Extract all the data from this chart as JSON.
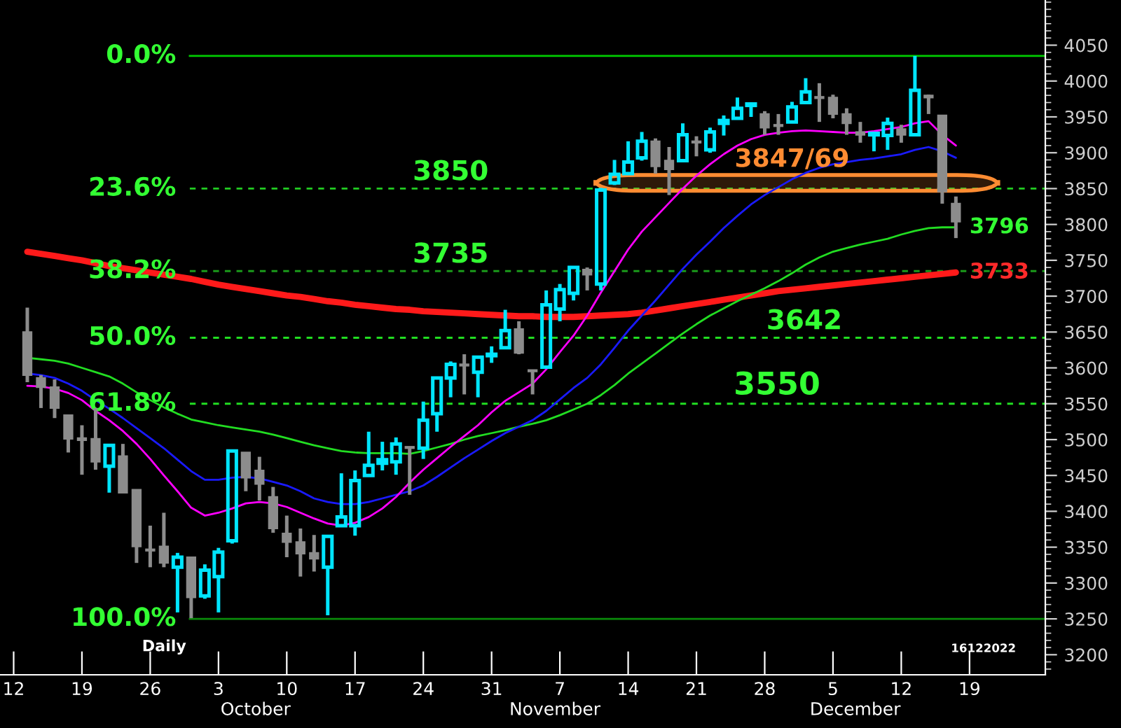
{
  "chart_data": {
    "type": "candlestick",
    "categories": [
      "12",
      null,
      null,
      null,
      null,
      "19",
      null,
      null,
      null,
      null,
      "26",
      null,
      null,
      null,
      null,
      "3",
      null,
      null,
      null,
      null,
      "10",
      null,
      null,
      null,
      null,
      "17",
      null,
      null,
      null,
      null,
      "24",
      null,
      null,
      null,
      null,
      "31",
      null,
      null,
      null,
      null,
      "7",
      null,
      null,
      null,
      null,
      "14",
      null,
      null,
      null,
      null,
      "21",
      null,
      null,
      null,
      null,
      "28",
      null,
      null,
      null,
      null,
      "5",
      null,
      null,
      null,
      null,
      "12",
      null,
      null,
      null,
      null,
      "19",
      null,
      null,
      null,
      null
    ],
    "ohlc": [
      null,
      [
        3650,
        3684,
        3580,
        3590
      ],
      [
        3586,
        3590,
        3544,
        3573
      ],
      [
        3573,
        3584,
        3530,
        3544
      ],
      [
        3534,
        3535,
        3482,
        3501
      ],
      [
        3502,
        3520,
        3451,
        3499
      ],
      [
        3501,
        3544,
        3458,
        3469
      ],
      [
        3463,
        3492,
        3426,
        3492
      ],
      [
        3477,
        3494,
        3426,
        3426
      ],
      [
        3430,
        3430,
        3328,
        3351
      ],
      [
        3347,
        3380,
        3322,
        3345
      ],
      [
        3351,
        3398,
        3322,
        3328
      ],
      [
        3322,
        3342,
        3259,
        3336
      ],
      [
        3336,
        3336,
        3251,
        3280
      ],
      [
        3282,
        3326,
        3278,
        3318
      ],
      [
        3309,
        3349,
        3259,
        3343
      ],
      [
        3359,
        3484,
        3355,
        3484
      ],
      [
        3482,
        3482,
        3428,
        3447
      ],
      [
        3457,
        3476,
        3415,
        3438
      ],
      [
        3420,
        3434,
        3370,
        3376
      ],
      [
        3369,
        3394,
        3336,
        3357
      ],
      [
        3357,
        3376,
        3309,
        3341
      ],
      [
        3342,
        3367,
        3316,
        3334
      ],
      [
        3322,
        3365,
        3255,
        3365
      ],
      [
        3380,
        3453,
        3378,
        3392
      ],
      [
        3380,
        3457,
        3366,
        3443
      ],
      [
        3450,
        3511,
        3450,
        3464
      ],
      [
        3467,
        3497,
        3457,
        3472
      ],
      [
        3469,
        3503,
        3451,
        3494
      ],
      [
        3490,
        3490,
        3423,
        3488
      ],
      [
        3488,
        3553,
        3473,
        3527
      ],
      [
        3536,
        3586,
        3511,
        3586
      ],
      [
        3586,
        3609,
        3559,
        3605
      ],
      [
        3605,
        3619,
        3563,
        3603
      ],
      [
        3594,
        3615,
        3559,
        3615
      ],
      [
        3617,
        3630,
        3607,
        3619
      ],
      [
        3628,
        3681,
        3628,
        3652
      ],
      [
        3654,
        3665,
        3619,
        3621
      ],
      [
        3597,
        3597,
        3563,
        3595
      ],
      [
        3601,
        3708,
        3601,
        3688
      ],
      [
        3682,
        3717,
        3665,
        3709
      ],
      [
        3704,
        3742,
        3694,
        3740
      ],
      [
        3737,
        3740,
        3708,
        3730
      ],
      [
        3717,
        3851,
        3708,
        3848
      ],
      [
        3858,
        3890,
        3855,
        3870
      ],
      [
        3871,
        3916,
        3871,
        3887
      ],
      [
        3893,
        3929,
        3889,
        3916
      ],
      [
        3916,
        3920,
        3871,
        3881
      ],
      [
        3889,
        3908,
        3841,
        3877
      ],
      [
        3889,
        3941,
        3889,
        3925
      ],
      [
        3916,
        3923,
        3895,
        3914
      ],
      [
        3904,
        3935,
        3900,
        3929
      ],
      [
        3941,
        3952,
        3924,
        3945
      ],
      [
        3948,
        3977,
        3948,
        3962
      ],
      [
        3966,
        3970,
        3950,
        3968
      ],
      [
        3954,
        3958,
        3925,
        3935
      ],
      [
        3939,
        3954,
        3925,
        3937
      ],
      [
        3943,
        3971,
        3943,
        3964
      ],
      [
        3970,
        4004,
        3970,
        3985
      ],
      [
        3978,
        3997,
        3943,
        3976
      ],
      [
        3977,
        3981,
        3948,
        3954
      ],
      [
        3954,
        3962,
        3925,
        3941
      ],
      [
        3929,
        3943,
        3914,
        3925
      ],
      [
        3925,
        3929,
        3902,
        3927
      ],
      [
        3924,
        3949,
        3904,
        3941
      ],
      [
        3933,
        3939,
        3914,
        3925
      ],
      [
        3925,
        4035,
        3923,
        3987
      ],
      [
        3980,
        3981,
        3954,
        3977
      ],
      [
        3952,
        3952,
        3829,
        3846
      ],
      [
        3829,
        3839,
        3781,
        3804
      ],
      null,
      null,
      null,
      null,
      null
    ],
    "colors": [
      null,
      "#8c8c8c",
      "#8c8c8c",
      "#8c8c8c",
      "#8c8c8c",
      "#8c8c8c",
      "#8c8c8c",
      "#00e5ff",
      "#8c8c8c",
      "#8c8c8c",
      "#8c8c8c",
      "#8c8c8c",
      "#00e5ff",
      "#8c8c8c",
      "#00e5ff",
      "#00e5ff",
      "#00e5ff",
      "#8c8c8c",
      "#8c8c8c",
      "#8c8c8c",
      "#8c8c8c",
      "#8c8c8c",
      "#8c8c8c",
      "#00e5ff",
      "#00e5ff",
      "#00e5ff",
      "#00e5ff",
      "#00e5ff",
      "#00e5ff",
      "#8c8c8c",
      "#00e5ff",
      "#00e5ff",
      "#00e5ff",
      "#8c8c8c",
      "#00e5ff",
      "#00e5ff",
      "#00e5ff",
      "#8c8c8c",
      "#8c8c8c",
      "#00e5ff",
      "#00e5ff",
      "#00e5ff",
      "#8c8c8c",
      "#00e5ff",
      "#00e5ff",
      "#00e5ff",
      "#00e5ff",
      "#8c8c8c",
      "#8c8c8c",
      "#00e5ff",
      "#8c8c8c",
      "#00e5ff",
      "#00e5ff",
      "#00e5ff",
      "#00e5ff",
      "#8c8c8c",
      "#8c8c8c",
      "#00e5ff",
      "#00e5ff",
      "#8c8c8c",
      "#8c8c8c",
      "#8c8c8c",
      "#8c8c8c",
      "#00e5ff",
      "#00e5ff",
      "#8c8c8c",
      "#00e5ff",
      "#8c8c8c",
      "#8c8c8c",
      "#8c8c8c",
      null,
      null,
      null,
      null,
      null
    ],
    "series": [
      {
        "type": "line",
        "color": "#ff1a1a",
        "values": [
          null,
          3762,
          3759,
          3756,
          3753,
          3750,
          3746,
          3742,
          3739,
          3736,
          3733,
          3730,
          3727,
          3724,
          3720,
          3716,
          3713,
          3710,
          3707,
          3704,
          3701,
          3699,
          3696,
          3693,
          3691,
          3688,
          3686,
          3684,
          3682,
          3681,
          3679,
          3678,
          3677,
          3676,
          3675,
          3674,
          3673,
          3672,
          3672,
          3671,
          3671,
          3671,
          3672,
          3673,
          3674,
          3675,
          3677,
          3680,
          3683,
          3686,
          3689,
          3692,
          3695,
          3698,
          3701,
          3704,
          3707,
          3709,
          3711,
          3713,
          3715,
          3717,
          3719,
          3721,
          3723,
          3725,
          3727,
          3729,
          3731,
          3733,
          null,
          null,
          null,
          null,
          null
        ]
      },
      {
        "type": "line",
        "color": "#22dd22",
        "values": [
          null,
          3614,
          3612,
          3610,
          3606,
          3600,
          3594,
          3588,
          3578,
          3566,
          3555,
          3545,
          3536,
          3528,
          3524,
          3520,
          3517,
          3514,
          3511,
          3507,
          3502,
          3497,
          3492,
          3488,
          3484,
          3482,
          3481,
          3481,
          3481,
          3480,
          3484,
          3489,
          3494,
          3500,
          3505,
          3509,
          3513,
          3518,
          3522,
          3527,
          3534,
          3542,
          3550,
          3562,
          3576,
          3592,
          3606,
          3620,
          3634,
          3648,
          3661,
          3673,
          3683,
          3693,
          3702,
          3711,
          3721,
          3732,
          3744,
          3754,
          3762,
          3767,
          3772,
          3776,
          3780,
          3786,
          3791,
          3795,
          3796,
          3796,
          null,
          null,
          null,
          null,
          null
        ]
      },
      {
        "type": "line",
        "color": "#1a1aff",
        "values": [
          null,
          3592,
          3590,
          3586,
          3578,
          3568,
          3555,
          3543,
          3530,
          3516,
          3502,
          3488,
          3472,
          3456,
          3444,
          3444,
          3447,
          3448,
          3446,
          3441,
          3436,
          3428,
          3418,
          3413,
          3410,
          3410,
          3413,
          3418,
          3423,
          3428,
          3436,
          3448,
          3461,
          3474,
          3486,
          3498,
          3509,
          3518,
          3527,
          3540,
          3556,
          3572,
          3586,
          3605,
          3628,
          3652,
          3673,
          3694,
          3716,
          3738,
          3758,
          3776,
          3795,
          3812,
          3828,
          3841,
          3852,
          3863,
          3872,
          3879,
          3884,
          3887,
          3890,
          3892,
          3895,
          3898,
          3904,
          3908,
          3902,
          3893,
          null,
          null,
          null,
          null,
          null
        ]
      },
      {
        "type": "line",
        "color": "#ff00ff",
        "values": [
          null,
          3575,
          3574,
          3571,
          3565,
          3555,
          3540,
          3527,
          3512,
          3494,
          3473,
          3450,
          3428,
          3405,
          3394,
          3398,
          3404,
          3411,
          3413,
          3411,
          3406,
          3398,
          3390,
          3383,
          3380,
          3384,
          3392,
          3404,
          3420,
          3440,
          3458,
          3474,
          3490,
          3505,
          3520,
          3538,
          3554,
          3566,
          3578,
          3598,
          3622,
          3645,
          3673,
          3705,
          3735,
          3765,
          3790,
          3810,
          3830,
          3850,
          3868,
          3884,
          3898,
          3910,
          3919,
          3925,
          3928,
          3930,
          3931,
          3930,
          3929,
          3928,
          3928,
          3930,
          3933,
          3936,
          3941,
          3944,
          3925,
          3910,
          null,
          null,
          null,
          null,
          null
        ]
      }
    ],
    "ylim": [
      3172,
      4113
    ],
    "yticks": [
      3200,
      3250,
      3300,
      3350,
      3400,
      3450,
      3500,
      3550,
      3600,
      3650,
      3700,
      3750,
      3800,
      3850,
      3900,
      3950,
      4000,
      4050
    ],
    "ref_lines": [
      {
        "axis": "y",
        "value": 4035,
        "color": "#00cc00",
        "line_style": "solid"
      },
      {
        "axis": "y",
        "value": 3850,
        "label": "3850",
        "color": "#22cc22",
        "line_style": "dashed"
      },
      {
        "axis": "y",
        "value": 3735,
        "label": "3735",
        "color": "#1a9a1a",
        "line_style": "dashed"
      },
      {
        "axis": "y",
        "value": 3642,
        "label": "3642",
        "color": "#22dd22",
        "line_style": "dashed"
      },
      {
        "axis": "y",
        "value": 3550,
        "label": "3550",
        "color": "#22dd22",
        "line_style": "dashed"
      },
      {
        "axis": "y",
        "value": 3250,
        "color": "#0a8a0a",
        "line_style": "solid"
      }
    ],
    "bands": [
      {
        "axis": "y",
        "from": 3847,
        "to": 3869,
        "label": "3847/69",
        "color": "#ff8c32"
      }
    ],
    "annotations": [
      "0.0%",
      "23.6%",
      "38.2%",
      "50.0%",
      "61.8%",
      "100.0%",
      "3796",
      "3733",
      "Daily",
      "16122022",
      "October",
      "November",
      "December"
    ],
    "grid": false,
    "legend": false
  }
}
